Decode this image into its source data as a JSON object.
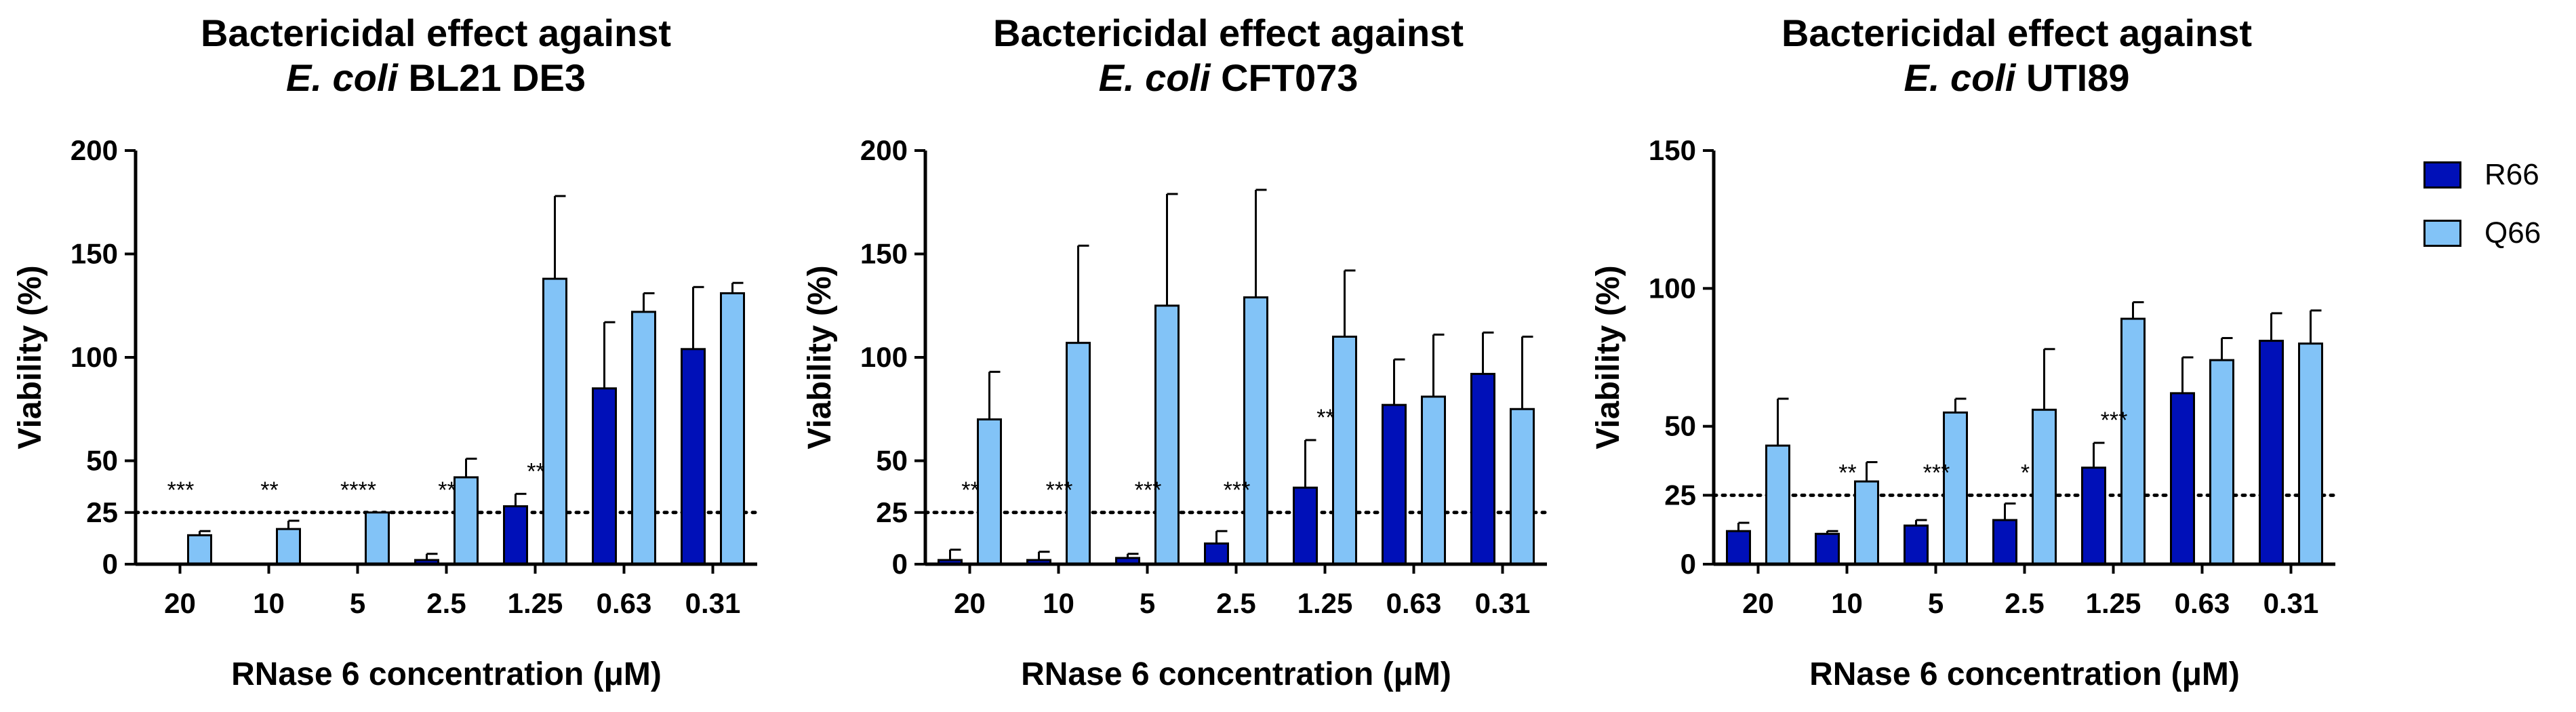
{
  "colors": {
    "R66": "#0010b8",
    "Q66": "#82c3f7",
    "axis": "#000000"
  },
  "legend": [
    {
      "label": "R66",
      "color": "#0010b8"
    },
    {
      "label": "Q66",
      "color": "#82c3f7"
    }
  ],
  "panels": [
    {
      "title_line1": "Bactericidal effect against",
      "title_strain_italic": "E. coli",
      "title_strain_rest": " BL21 DE3"
    },
    {
      "title_line1": "Bactericidal effect against",
      "title_strain_italic": "E. coli",
      "title_strain_rest": " CFT073"
    },
    {
      "title_line1": "Bactericidal effect against",
      "title_strain_italic": "E. coli",
      "title_strain_rest": " UTI89"
    }
  ],
  "chart_data": [
    {
      "type": "bar",
      "title": "Bactericidal effect against E. coli BL21 DE3",
      "xlabel": "RNase 6 concentration (μM)",
      "ylabel": "Viability (%)",
      "ylim": [
        0,
        200
      ],
      "yticks": [
        "0",
        "25",
        "50",
        "100",
        "150",
        "200"
      ],
      "categories": [
        "20",
        "10",
        "5",
        "2.5",
        "1.25",
        "0.63",
        "0.31"
      ],
      "reference_line": 25,
      "series": [
        {
          "name": "R66",
          "values": [
            0,
            0,
            0,
            2,
            28,
            85,
            104
          ],
          "errors": [
            0,
            0,
            0,
            3,
            6,
            32,
            30
          ]
        },
        {
          "name": "Q66",
          "values": [
            14,
            17,
            25,
            42,
            138,
            122,
            131
          ],
          "errors": [
            2,
            4,
            0,
            9,
            40,
            9,
            5
          ]
        }
      ],
      "significance": [
        "***",
        "**",
        "****",
        "**",
        "**",
        "",
        ""
      ]
    },
    {
      "type": "bar",
      "title": "Bactericidal effect against E. coli CFT073",
      "xlabel": "RNase 6 concentration (μM)",
      "ylabel": "Viability (%)",
      "ylim": [
        0,
        200
      ],
      "yticks": [
        "0",
        "25",
        "50",
        "100",
        "150",
        "200"
      ],
      "categories": [
        "20",
        "10",
        "5",
        "2.5",
        "1.25",
        "0.63",
        "0.31"
      ],
      "reference_line": 25,
      "series": [
        {
          "name": "R66",
          "values": [
            2,
            2,
            3,
            10,
            37,
            77,
            92
          ],
          "errors": [
            5,
            4,
            2,
            6,
            23,
            22,
            20
          ]
        },
        {
          "name": "Q66",
          "values": [
            70,
            107,
            125,
            129,
            110,
            81,
            75
          ],
          "errors": [
            23,
            47,
            54,
            52,
            32,
            30,
            35
          ]
        }
      ],
      "significance": [
        "**",
        "***",
        "***",
        "***",
        "**",
        "",
        ""
      ]
    },
    {
      "type": "bar",
      "title": "Bactericidal effect against E. coli UTI89",
      "xlabel": "RNase 6 concentration (μM)",
      "ylabel": "Viability (%)",
      "ylim": [
        0,
        150
      ],
      "yticks": [
        "0",
        "25",
        "50",
        "100",
        "150"
      ],
      "categories": [
        "20",
        "10",
        "5",
        "2.5",
        "1.25",
        "0.63",
        "0.31"
      ],
      "reference_line": 25,
      "series": [
        {
          "name": "R66",
          "values": [
            12,
            11,
            14,
            16,
            35,
            62,
            81
          ],
          "errors": [
            3,
            1,
            2,
            6,
            9,
            13,
            10
          ]
        },
        {
          "name": "Q66",
          "values": [
            43,
            30,
            55,
            56,
            89,
            74,
            80
          ],
          "errors": [
            17,
            7,
            5,
            22,
            6,
            8,
            12
          ]
        }
      ],
      "significance": [
        "",
        "**",
        "***",
        "*",
        "***",
        "",
        ""
      ]
    }
  ]
}
